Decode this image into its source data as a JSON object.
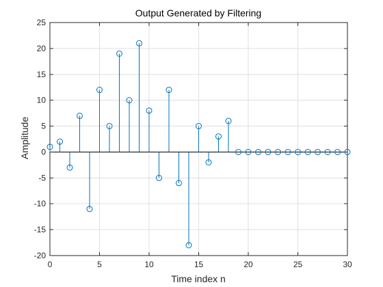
{
  "chart_data": {
    "type": "stem",
    "title": "Output Generated by Filtering",
    "xlabel": "Time index n",
    "ylabel": "Amplitude",
    "xlim": [
      0,
      30
    ],
    "ylim": [
      -20,
      25
    ],
    "xticks": [
      0,
      5,
      10,
      15,
      20,
      25,
      30
    ],
    "yticks": [
      -20,
      -15,
      -10,
      -5,
      0,
      5,
      10,
      15,
      20,
      25
    ],
    "grid": true,
    "color": "#0072BD",
    "x": [
      0,
      1,
      2,
      3,
      4,
      5,
      6,
      7,
      8,
      9,
      10,
      11,
      12,
      13,
      14,
      15,
      16,
      17,
      18,
      19,
      20,
      21,
      22,
      23,
      24,
      25,
      26,
      27,
      28,
      29,
      30
    ],
    "values": [
      1,
      2,
      -3,
      7,
      -11,
      12,
      5,
      19,
      10,
      21,
      8,
      -5,
      12,
      -6,
      -18,
      5,
      -2,
      3,
      6,
      0,
      0,
      0,
      0,
      0,
      0,
      0,
      0,
      0,
      0,
      0,
      0
    ]
  }
}
